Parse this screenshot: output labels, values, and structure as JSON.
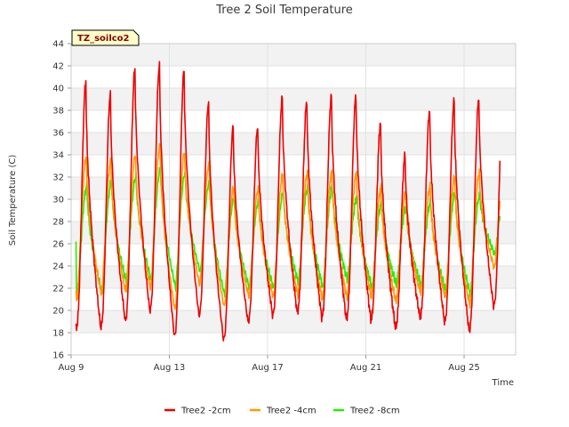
{
  "chart_data": {
    "type": "line",
    "title": "Tree 2 Soil Temperature",
    "xlabel": "Time",
    "ylabel": "Soil Temperature (C)",
    "site_tag": "TZ_soilco2",
    "ylim": [
      16,
      44
    ],
    "yticks": [
      16,
      18,
      20,
      22,
      24,
      26,
      28,
      30,
      32,
      34,
      36,
      38,
      40,
      42,
      44
    ],
    "xlim_days": [
      9,
      27.1
    ],
    "xticks": [
      {
        "day": 9,
        "label": "Aug 9"
      },
      {
        "day": 13,
        "label": "Aug 13"
      },
      {
        "day": 17,
        "label": "Aug 17"
      },
      {
        "day": 21,
        "label": "Aug 21"
      },
      {
        "day": 25,
        "label": "Aug 25"
      }
    ],
    "grid": true,
    "legend_position": "bottom",
    "days": [
      9,
      10,
      11,
      12,
      13,
      14,
      15,
      16,
      17,
      18,
      19,
      20,
      21,
      22,
      23,
      24,
      25,
      26
    ],
    "series": [
      {
        "name": "Tree2 -2cm",
        "color": "#ee0000",
        "min": [
          18.4,
          18.5,
          19.1,
          20.0,
          17.7,
          19.6,
          17.4,
          19.0,
          19.6,
          19.9,
          19.4,
          19.3,
          19.2,
          18.5,
          19.4,
          19.0,
          18.2,
          20.4
        ],
        "max": [
          40.6,
          39.4,
          41.8,
          42.1,
          41.6,
          38.7,
          36.5,
          36.5,
          39.1,
          38.8,
          39.3,
          39.3,
          36.8,
          34.0,
          38.0,
          38.9,
          39.1,
          40.3
        ],
        "trough_at": [
          9.2,
          10.2,
          11.2,
          12.2,
          13.2,
          14.2,
          15.2,
          16.2,
          17.2,
          18.2,
          19.2,
          20.2,
          21.2,
          22.2,
          23.2,
          24.2,
          25.2,
          26.2
        ]
      },
      {
        "name": "Tree2 -4cm",
        "color": "#ff9900",
        "min": [
          21.0,
          21.5,
          21.6,
          22.0,
          20.0,
          22.3,
          20.3,
          21.3,
          21.2,
          21.4,
          21.0,
          21.2,
          21.2,
          20.8,
          21.6,
          21.2,
          20.5,
          23.8
        ],
        "max": [
          33.8,
          33.4,
          34.0,
          34.8,
          34.3,
          33.2,
          31.1,
          30.9,
          32.2,
          32.3,
          32.4,
          32.3,
          31.0,
          30.5,
          31.1,
          32.0,
          32.4,
          32.6
        ]
      },
      {
        "name": "Tree2 -8cm",
        "color": "#22ee00",
        "min": [
          21.3,
          21.6,
          22.5,
          22.7,
          22.0,
          23.4,
          21.3,
          22.0,
          21.9,
          22.5,
          22.0,
          22.7,
          22.0,
          22.2,
          22.2,
          21.7,
          21.4,
          25.0
        ],
        "max": [
          31.2,
          31.6,
          32.1,
          32.8,
          32.4,
          31.6,
          30.2,
          29.9,
          30.6,
          31.1,
          31.2,
          30.2,
          29.7,
          29.3,
          29.8,
          30.6,
          30.4,
          30.3
        ]
      }
    ],
    "start_value_8cm": 26.2
  }
}
